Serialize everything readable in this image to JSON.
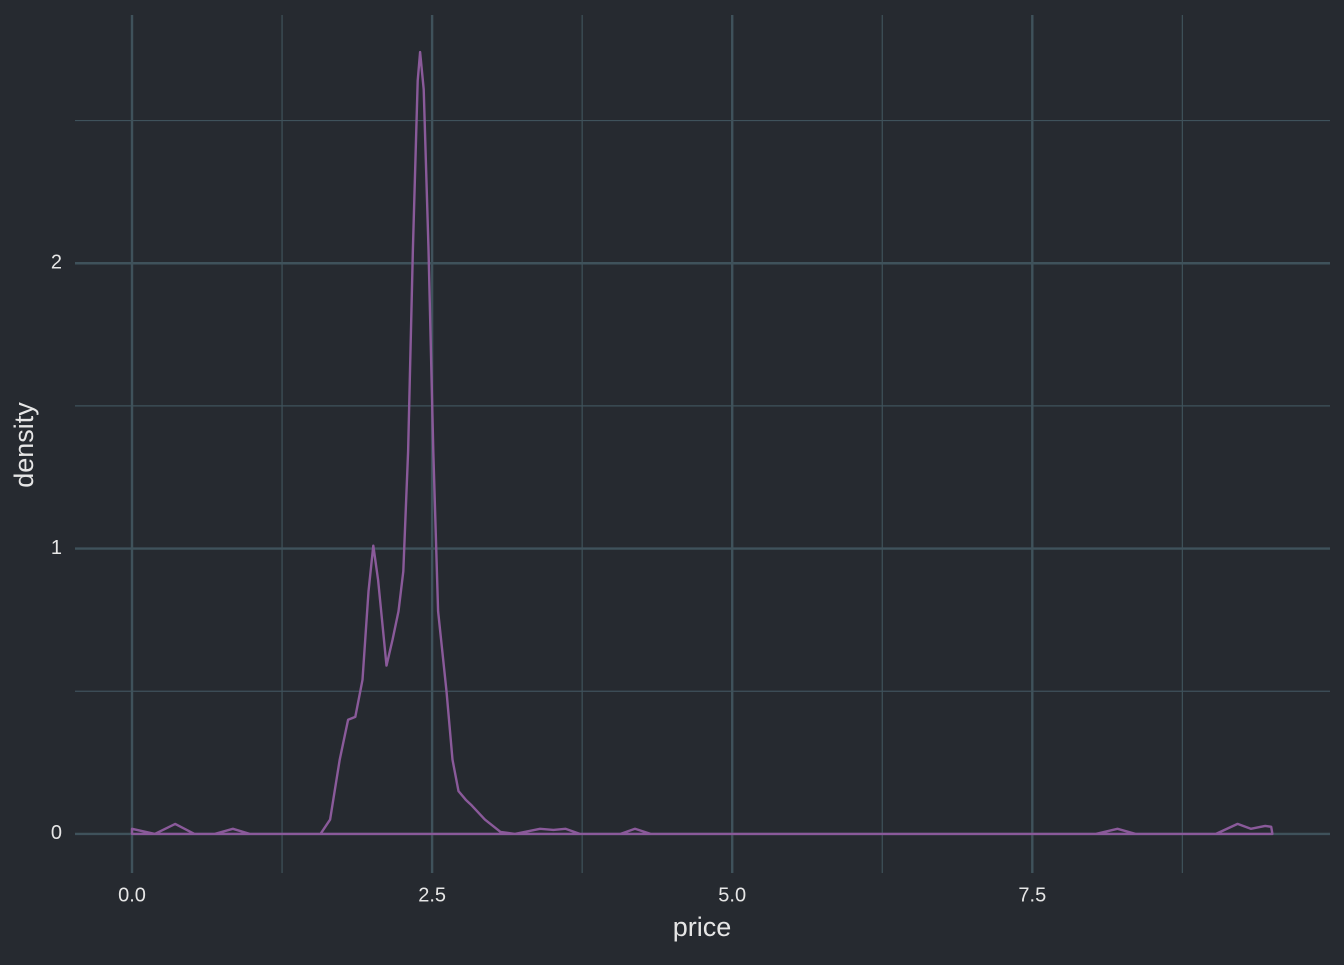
{
  "chart_data": {
    "type": "density",
    "x_label": "price",
    "y_label": "density",
    "xlim": [
      -0.475,
      9.98
    ],
    "ylim": [
      -0.137,
      2.87
    ],
    "xticks": [
      {
        "value": 0,
        "label": "0.0"
      },
      2.5,
      {
        "value": 5,
        "label": "5.0"
      },
      7.5
    ],
    "yticks": [
      0,
      1,
      2
    ],
    "x_minor_ticks": [
      1.25,
      3.75,
      6.25,
      8.75
    ],
    "y_minor_ticks": [
      0.5,
      1.5,
      2.5
    ],
    "grid": true,
    "background": "#262a30",
    "grid_color": "#3f525b",
    "series": [
      {
        "color": "#8a5a9a",
        "x": [
          0,
          0,
          0.19,
          0.36,
          0.52,
          0.69,
          0.84,
          0.98,
          1.57,
          1.65,
          1.73,
          1.8,
          1.86,
          1.92,
          1.97,
          2.01,
          2.05,
          2.12,
          2.17,
          2.22,
          2.26,
          2.3,
          2.34,
          2.38,
          2.4,
          2.43,
          2.47,
          2.51,
          2.55,
          2.62,
          2.67,
          2.72,
          2.78,
          2.83,
          2.94,
          3.07,
          3.19,
          3.4,
          3.51,
          3.61,
          3.73,
          4.07,
          4.19,
          4.32,
          8.03,
          8.21,
          8.36,
          9.03,
          9.21,
          9.32,
          9.44,
          9.49,
          9.5
        ],
        "values": [
          0,
          0.018,
          0,
          0.035,
          0,
          0,
          0.018,
          0,
          0,
          0.05,
          0.26,
          0.4,
          0.41,
          0.54,
          0.85,
          1.01,
          0.89,
          0.59,
          0.68,
          0.78,
          0.92,
          1.34,
          2.05,
          2.64,
          2.74,
          2.61,
          2.05,
          1.34,
          0.78,
          0.5,
          0.26,
          0.15,
          0.12,
          0.1,
          0.05,
          0.007,
          0,
          0.018,
          0.014,
          0.018,
          0,
          0,
          0.018,
          0,
          0,
          0.018,
          0,
          0,
          0.035,
          0.018,
          0.028,
          0.025,
          0
        ]
      }
    ]
  }
}
